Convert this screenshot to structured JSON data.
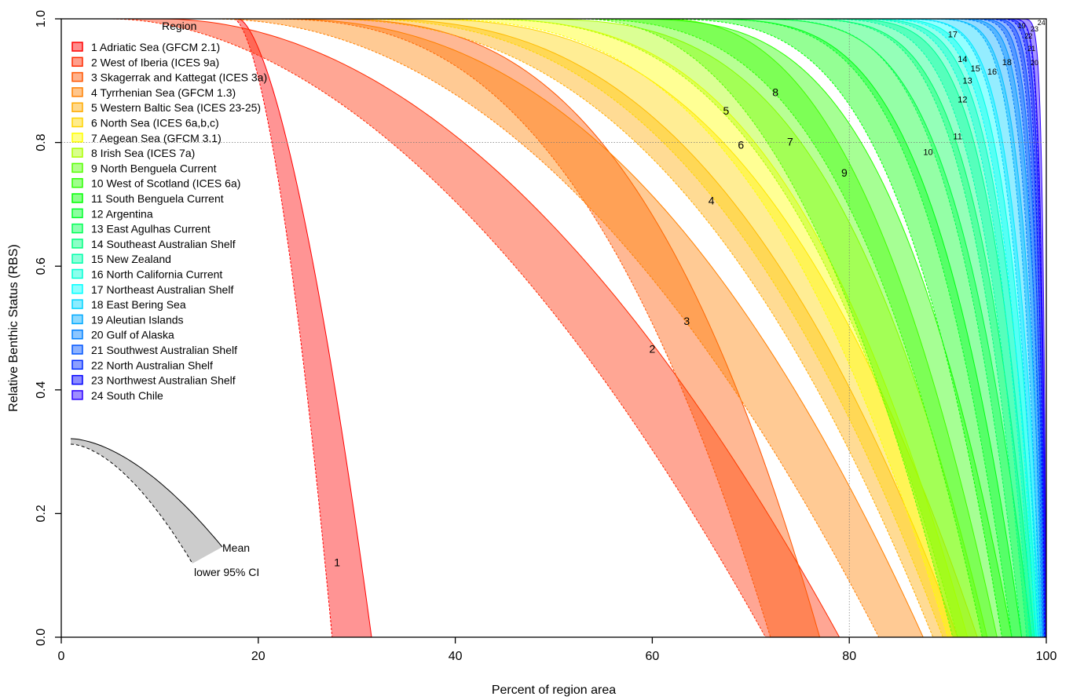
{
  "chart_data": {
    "type": "area",
    "xlabel": "Percent of region area",
    "ylabel": "Relative Benthic Status (RBS)",
    "xlim": [
      0,
      100
    ],
    "ylim": [
      0,
      1
    ],
    "xticks": [
      0,
      20,
      40,
      60,
      80,
      100
    ],
    "yticks": [
      0.0,
      0.2,
      0.4,
      0.6,
      0.8,
      1.0
    ],
    "reference_lines": {
      "x": 80,
      "y": 0.8
    },
    "grid": false,
    "legend": {
      "title": "Region",
      "placement": "top-left",
      "entries": [
        "1 Adriatic Sea (GFCM 2.1)",
        "2 West of Iberia (ICES 9a)",
        "3 Skagerrak and Kattegat (ICES 3a)",
        "4 Tyrrhenian Sea (GFCM 1.3)",
        "5 Western Baltic Sea (ICES 23-25)",
        "6 North Sea (ICES 6a,b,c)",
        "7 Aegean Sea (GFCM 3.1)",
        "8 Irish Sea (ICES 7a)",
        "9 North Benguela Current",
        "10 West of Scotland (ICES 6a)",
        "11 South Benguela Current",
        "12 Argentina",
        "13 East Agulhas Current",
        "14 Southeast Australian Shelf",
        "15 New Zealand",
        "16 North California Current",
        "17 Northeast Australian Shelf",
        "18 East Bering Sea",
        "19 Aleutian Islands",
        "20 Gulf of Alaska",
        "21 Southwest Australian Shelf",
        "22 North Australian Shelf",
        "23 Northwest Australian Shelf",
        "24 South Chile"
      ]
    },
    "inset_key": {
      "upper_label": "Mean",
      "lower_label": "lower 95% CI",
      "color": "#cccccc"
    },
    "series": [
      {
        "id": "1",
        "color": "#ff0000",
        "mean_end": 31.5,
        "lower_end": 27.5,
        "mean_b": 18.0,
        "mean_p": 1.6,
        "lower_b": 17.5,
        "lower_p": 1.7,
        "label_at": [
          28,
          0.115
        ]
      },
      {
        "id": "2",
        "color": "#ff2a00",
        "mean_end": 79.0,
        "lower_end": 71.5,
        "mean_b": 10,
        "mean_p": 2.0,
        "lower_b": 5,
        "lower_p": 1.9,
        "label_at": [
          60,
          0.46
        ]
      },
      {
        "id": "3",
        "color": "#ff5500",
        "mean_end": 77.0,
        "lower_end": 72.0,
        "mean_b": 25,
        "mean_p": 2.9,
        "lower_b": 20,
        "lower_p": 2.7,
        "label_at": [
          63.5,
          0.505
        ]
      },
      {
        "id": "4",
        "color": "#ff8000",
        "mean_end": 87.5,
        "lower_end": 83.0,
        "mean_b": 22,
        "mean_p": 2.3,
        "lower_b": 15,
        "lower_p": 2.1,
        "label_at": [
          66,
          0.7
        ]
      },
      {
        "id": "5",
        "color": "#ffaa00",
        "mean_end": 91.0,
        "lower_end": 88.5,
        "mean_b": 30,
        "mean_p": 2.6,
        "lower_b": 25,
        "lower_p": 2.5,
        "label_at": [
          67.5,
          0.845
        ]
      },
      {
        "id": "6",
        "color": "#ffd400",
        "mean_end": 93.0,
        "lower_end": 89.5,
        "mean_b": 34,
        "mean_p": 2.8,
        "lower_b": 28,
        "lower_p": 2.6,
        "label_at": [
          69,
          0.79
        ]
      },
      {
        "id": "7",
        "color": "#ffff00",
        "mean_end": 92.0,
        "lower_end": 90.0,
        "mean_b": 40,
        "mean_p": 3.0,
        "lower_b": 35,
        "lower_p": 2.9,
        "label_at": [
          74,
          0.795
        ]
      },
      {
        "id": "8",
        "color": "#aaff00",
        "mean_end": 94.0,
        "lower_end": 91.0,
        "mean_b": 45,
        "mean_p": 3.3,
        "lower_b": 40,
        "lower_p": 3.0,
        "label_at": [
          72.5,
          0.875
        ]
      },
      {
        "id": "9",
        "color": "#55ff00",
        "mean_end": 95.0,
        "lower_end": 90.5,
        "mean_b": 60,
        "mean_p": 2.6,
        "lower_b": 52,
        "lower_p": 2.4,
        "label_at": [
          79.5,
          0.745
        ]
      },
      {
        "id": "10",
        "color": "#2bff00",
        "mean_end": 96.5,
        "lower_end": 93.5,
        "mean_b": 55,
        "mean_p": 3.5,
        "lower_b": 50,
        "lower_p": 3.2,
        "label_at": [
          88,
          0.78
        ]
      },
      {
        "id": "11",
        "color": "#00ff00",
        "mean_end": 97.5,
        "lower_end": 95.5,
        "mean_b": 62,
        "mean_p": 4.0,
        "lower_b": 58,
        "lower_p": 3.7,
        "label_at": [
          91,
          0.805
        ]
      },
      {
        "id": "12",
        "color": "#00ff2b",
        "mean_end": 98.5,
        "lower_end": 96.5,
        "mean_b": 66,
        "mean_p": 4.4,
        "lower_b": 62,
        "lower_p": 4.0,
        "label_at": [
          91.5,
          0.865
        ]
      },
      {
        "id": "13",
        "color": "#00ff55",
        "mean_end": 98.8,
        "lower_end": 97.5,
        "mean_b": 70,
        "mean_p": 5.0,
        "lower_b": 66,
        "lower_p": 4.6,
        "label_at": [
          92,
          0.895
        ]
      },
      {
        "id": "14",
        "color": "#00ff80",
        "mean_end": 99.0,
        "lower_end": 98.0,
        "mean_b": 74,
        "mean_p": 5.5,
        "lower_b": 70,
        "lower_p": 5.0,
        "label_at": [
          91.5,
          0.93
        ]
      },
      {
        "id": "15",
        "color": "#00ffaa",
        "mean_end": 99.2,
        "lower_end": 98.3,
        "mean_b": 76,
        "mean_p": 6.0,
        "lower_b": 72,
        "lower_p": 5.5,
        "label_at": [
          92.8,
          0.915
        ]
      },
      {
        "id": "16",
        "color": "#00ffd4",
        "mean_end": 99.4,
        "lower_end": 98.6,
        "mean_b": 78,
        "mean_p": 6.5,
        "lower_b": 75,
        "lower_p": 6.0,
        "label_at": [
          94.5,
          0.91
        ]
      },
      {
        "id": "17",
        "color": "#00ffff",
        "mean_end": 99.6,
        "lower_end": 98.9,
        "mean_b": 80,
        "mean_p": 7.0,
        "lower_b": 77,
        "lower_p": 6.5,
        "label_at": [
          90.5,
          0.97
        ]
      },
      {
        "id": "18",
        "color": "#00d4ff",
        "mean_end": 99.8,
        "lower_end": 99.2,
        "mean_b": 83,
        "mean_p": 8.0,
        "lower_b": 80,
        "lower_p": 7.0,
        "label_at": [
          96,
          0.925
        ]
      },
      {
        "id": "19",
        "color": "#00aaff",
        "mean_end": 99.9,
        "lower_end": 99.4,
        "mean_b": 86,
        "mean_p": 9.0,
        "lower_b": 83,
        "lower_p": 8.0,
        "label_at": [
          97.5,
          0.985
        ]
      },
      {
        "id": "20",
        "color": "#0080ff",
        "mean_end": 99.95,
        "lower_end": 99.6,
        "mean_b": 88,
        "mean_p": 10.0,
        "lower_b": 85,
        "lower_p": 9.0,
        "label_at": [
          98.8,
          0.925
        ]
      },
      {
        "id": "21",
        "color": "#0055ff",
        "mean_end": 99.97,
        "lower_end": 99.7,
        "mean_b": 90,
        "mean_p": 11.0,
        "lower_b": 87,
        "lower_p": 10.0,
        "label_at": [
          98.5,
          0.948
        ]
      },
      {
        "id": "22",
        "color": "#002bff",
        "mean_end": 99.98,
        "lower_end": 99.8,
        "mean_b": 92,
        "mean_p": 12.0,
        "lower_b": 89,
        "lower_p": 11.0,
        "label_at": [
          98.2,
          0.968
        ]
      },
      {
        "id": "23",
        "color": "#0000ff",
        "mean_end": 99.99,
        "lower_end": 99.85,
        "mean_b": 93,
        "mean_p": 13.0,
        "lower_b": 91,
        "lower_p": 12.0,
        "label_at": [
          98.8,
          0.98
        ]
      },
      {
        "id": "24",
        "color": "#2b00ff",
        "mean_end": 100.0,
        "lower_end": 99.9,
        "mean_b": 95,
        "mean_p": 14.0,
        "lower_b": 93,
        "lower_p": 13.0,
        "label_at": [
          99.5,
          0.99
        ]
      }
    ]
  }
}
